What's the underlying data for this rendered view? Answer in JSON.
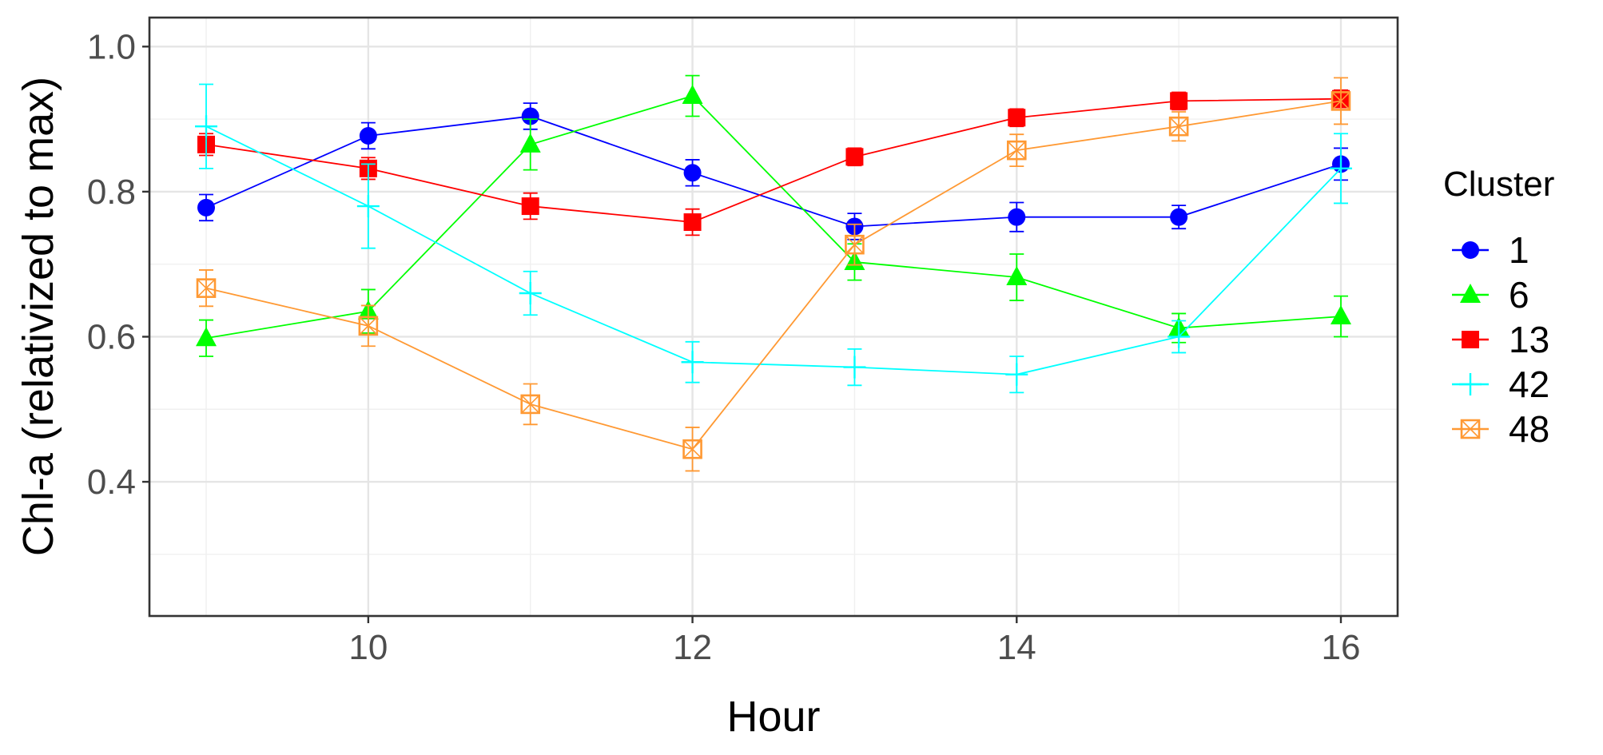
{
  "chart_data": {
    "type": "line",
    "title": "",
    "xlabel": "Hour",
    "ylabel": "Chl-a (relativized to max)",
    "xlim": [
      8.65,
      16.35
    ],
    "ylim": [
      0.215,
      1.04
    ],
    "x_ticks": [
      10,
      12,
      14,
      16
    ],
    "x_tick_labels": [
      "10",
      "12",
      "14",
      "16"
    ],
    "y_ticks": [
      0.4,
      0.6,
      0.8,
      1.0
    ],
    "y_tick_labels": [
      "0.4",
      "0.6",
      "0.8",
      "1.0"
    ],
    "y_minor_ticks": [
      0.3,
      0.5,
      0.7,
      0.9
    ],
    "x_minor_ticks": [
      9,
      11,
      13,
      15
    ],
    "grid": true,
    "legend_title": "Cluster",
    "legend_position": "right",
    "x": [
      9,
      10,
      11,
      12,
      13,
      14,
      15,
      16
    ],
    "series": [
      {
        "name": "1",
        "color": "#0000ff",
        "marker": "circle",
        "values": [
          0.778,
          0.877,
          0.904,
          0.826,
          0.752,
          0.765,
          0.765,
          0.838
        ],
        "errors": [
          0.018,
          0.018,
          0.018,
          0.018,
          0.018,
          0.02,
          0.016,
          0.022
        ]
      },
      {
        "name": "6",
        "color": "#00ff00",
        "marker": "triangle",
        "values": [
          0.598,
          0.635,
          0.865,
          0.932,
          0.703,
          0.682,
          0.612,
          0.628
        ],
        "errors": [
          0.025,
          0.03,
          0.035,
          0.028,
          0.025,
          0.032,
          0.02,
          0.028
        ]
      },
      {
        "name": "13",
        "color": "#ff0000",
        "marker": "square",
        "values": [
          0.865,
          0.832,
          0.78,
          0.758,
          0.848,
          0.902,
          0.925,
          0.928
        ],
        "errors": [
          0.015,
          0.015,
          0.018,
          0.018,
          0.012,
          0.012,
          0.012,
          0.012
        ]
      },
      {
        "name": "42",
        "color": "#00ffff",
        "marker": "plus",
        "values": [
          0.89,
          0.78,
          0.66,
          0.565,
          0.558,
          0.548,
          0.6,
          0.832
        ],
        "errors": [
          0.058,
          0.058,
          0.03,
          0.028,
          0.025,
          0.025,
          0.022,
          0.048
        ]
      },
      {
        "name": "48",
        "color": "#ff9933",
        "marker": "square-cross",
        "values": [
          0.667,
          0.615,
          0.507,
          0.445,
          0.727,
          0.857,
          0.89,
          0.925
        ],
        "errors": [
          0.025,
          0.028,
          0.028,
          0.03,
          0.028,
          0.022,
          0.02,
          0.032
        ]
      }
    ]
  }
}
